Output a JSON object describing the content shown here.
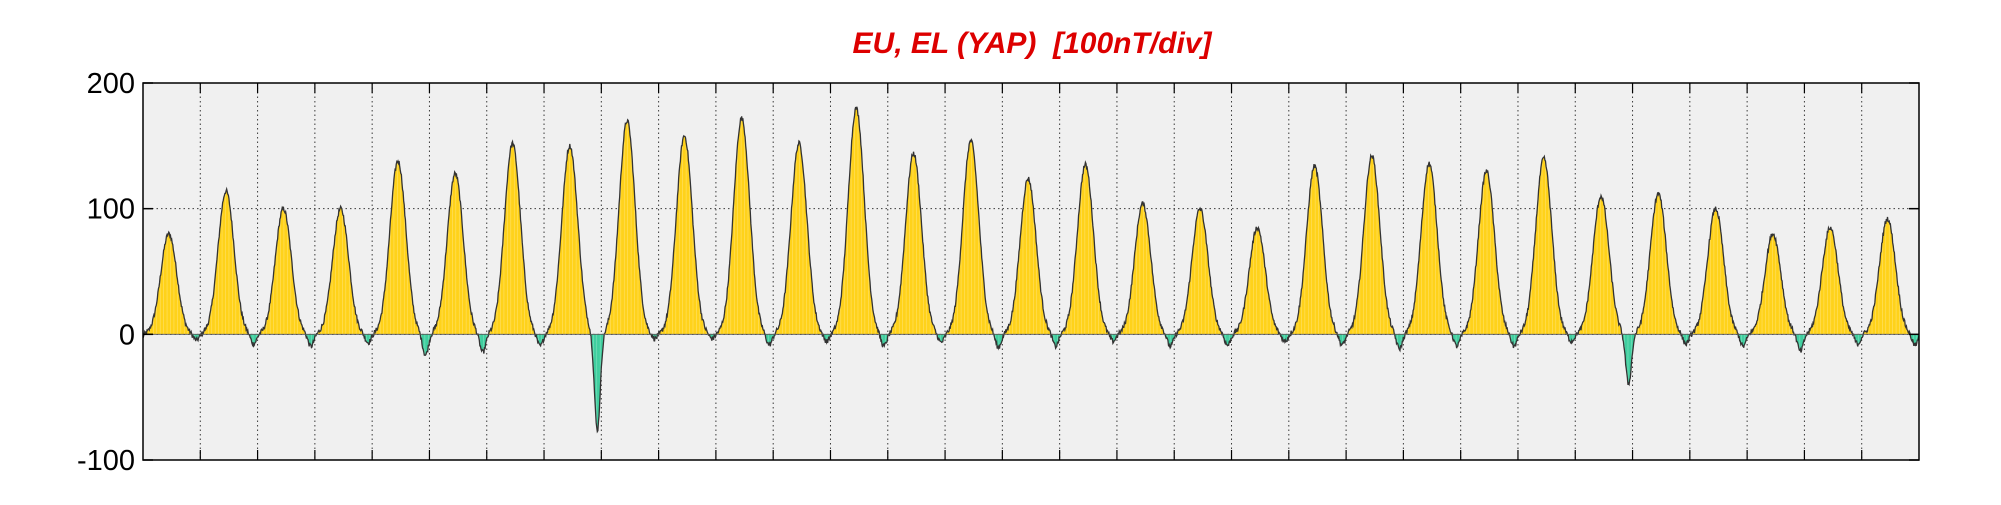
{
  "chart_data": {
    "type": "area",
    "title": "EU, EL (YAP)  [100nT/div]",
    "xlabel": "",
    "ylabel": "",
    "ylim": [
      -100,
      200
    ],
    "yticks": [
      -100,
      0,
      100,
      200
    ],
    "ytick_labels": [
      "-100",
      "0",
      "100",
      "200"
    ],
    "x_divisions": 31,
    "grid": true,
    "grid_style": "dotted",
    "x_tick_labels_shown": false,
    "series": [
      {
        "role": "EU",
        "fill_rule": "above zero",
        "values": [
          80,
          114,
          100,
          100,
          138,
          128,
          152,
          150,
          170,
          158,
          172,
          152,
          180,
          144,
          154,
          124,
          135,
          104,
          100,
          85,
          134,
          142,
          136,
          130,
          140,
          110,
          112,
          100,
          80,
          85,
          92
        ]
      },
      {
        "role": "EL",
        "fill_rule": "below zero",
        "values": [
          -5,
          -8,
          -10,
          -7,
          -17,
          -15,
          -10,
          -77,
          -4,
          -4,
          -9,
          -6,
          -10,
          -7,
          -11,
          -10,
          -6,
          -10,
          -9,
          -6,
          -9,
          -12,
          -10,
          -10,
          -6,
          -40,
          -8,
          -10,
          -14,
          -8,
          -9
        ]
      }
    ],
    "colors": {
      "title": "#dd0000",
      "plot_background": "#f0f0f0",
      "eu_fill": "#ffd21a",
      "el_fill": "#3fcf9f",
      "line": "#333333",
      "grid": "#3a3a3a"
    }
  }
}
